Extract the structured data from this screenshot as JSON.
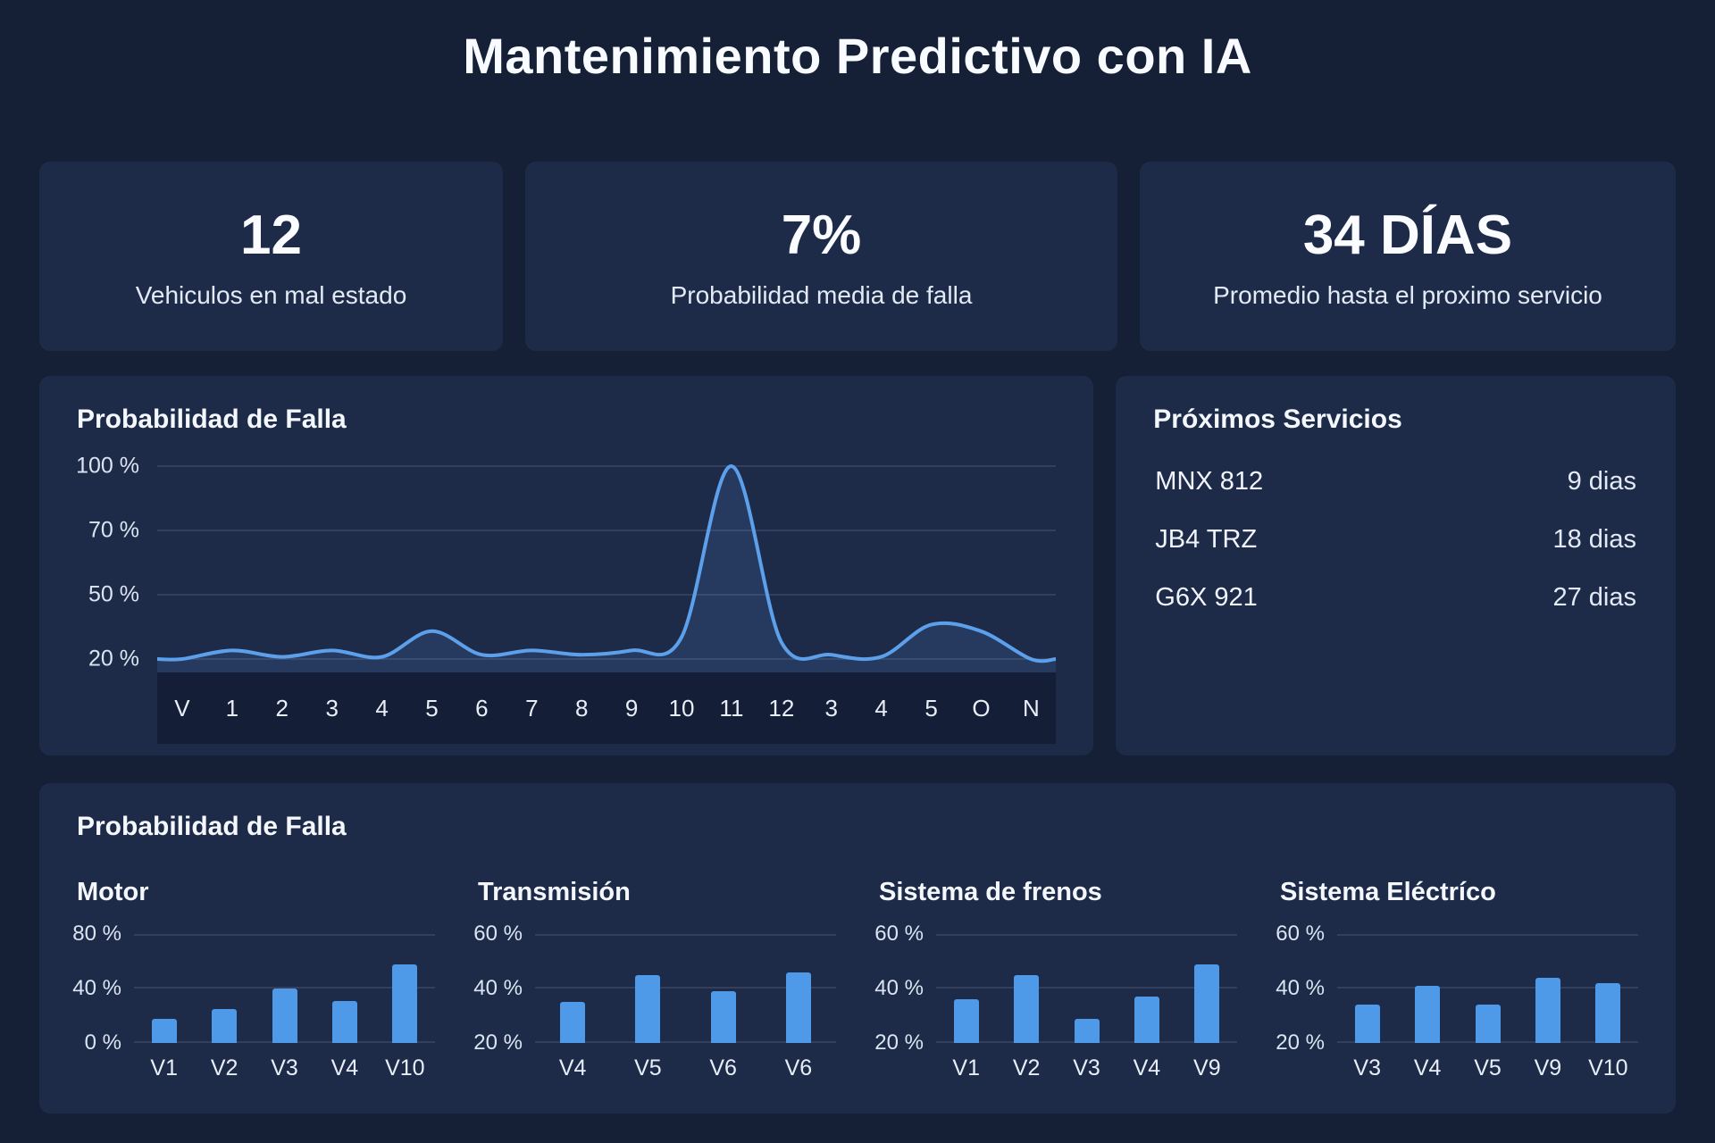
{
  "page": {
    "title": "Mantenimiento Predictivo con IA"
  },
  "stats": [
    {
      "value": "12",
      "label": "Vehiculos en mal estado"
    },
    {
      "value": "7%",
      "label": "Probabilidad media de falla"
    },
    {
      "value": "34 DÍAS",
      "label": "Promedio hasta el proximo servicio"
    }
  ],
  "services": {
    "title": "Próximos Servicios",
    "items": [
      {
        "vehicle": "MNX 812",
        "days": "9 dias"
      },
      {
        "vehicle": "JB4 TRZ",
        "days": "18 dias"
      },
      {
        "vehicle": "G6X 921",
        "days": "27 dias"
      }
    ]
  },
  "bottom_card": {
    "title": "Probabilidad de Falla"
  },
  "colors": {
    "background": "#152036",
    "card": "#1D2B49",
    "accent": "#4F9AE8",
    "line": "#5CA0EC",
    "area_fill": "rgba(95,160,236,0.13)",
    "axis_band": "#141E37",
    "gridline": "rgba(255,255,255,0.10)"
  },
  "chart_data": [
    {
      "type": "area",
      "title": "Probabilidad de Falla",
      "categories": [
        "V",
        "1",
        "2",
        "3",
        "4",
        "5",
        "6",
        "7",
        "8",
        "9",
        "10",
        "11",
        "12",
        "3",
        "4",
        "5",
        "O",
        "N"
      ],
      "values": [
        20,
        24,
        21,
        24,
        21,
        33,
        22,
        24,
        22,
        24,
        30,
        100,
        28,
        22,
        21,
        36,
        33,
        20
      ],
      "yticks": [
        100,
        70,
        50,
        20
      ],
      "ytick_suffix": " %",
      "ylim": [
        20,
        100
      ],
      "grid": true,
      "legend": false
    },
    {
      "type": "bar",
      "title": "Motor",
      "categories": [
        "V1",
        "V2",
        "V3",
        "V4",
        "V10"
      ],
      "values": [
        18,
        25,
        40,
        31,
        58
      ],
      "yticks": [
        80,
        40,
        0
      ],
      "ytick_suffix": " %",
      "ylim": [
        0,
        80
      ],
      "grid": true,
      "legend": false
    },
    {
      "type": "bar",
      "title": "Transmisión",
      "categories": [
        "V4",
        "V5",
        "V6",
        "V6"
      ],
      "values": [
        35,
        45,
        39,
        46
      ],
      "yticks": [
        60,
        40,
        20
      ],
      "ytick_suffix": " %",
      "ylim": [
        20,
        60
      ],
      "grid": true,
      "legend": false
    },
    {
      "type": "bar",
      "title": "Sistema de frenos",
      "categories": [
        "V1",
        "V2",
        "V3",
        "V4",
        "V9"
      ],
      "values": [
        36,
        45,
        29,
        37,
        49
      ],
      "yticks": [
        60,
        40,
        20
      ],
      "ytick_suffix": " %",
      "ylim": [
        20,
        60
      ],
      "grid": true,
      "legend": false
    },
    {
      "type": "bar",
      "title": "Sistema Eléctríco",
      "categories": [
        "V3",
        "V4",
        "V5",
        "V9",
        "V10"
      ],
      "values": [
        34,
        41,
        34,
        44,
        42
      ],
      "yticks": [
        60,
        40,
        20
      ],
      "ytick_suffix": " %",
      "ylim": [
        20,
        60
      ],
      "grid": true,
      "legend": false
    }
  ]
}
